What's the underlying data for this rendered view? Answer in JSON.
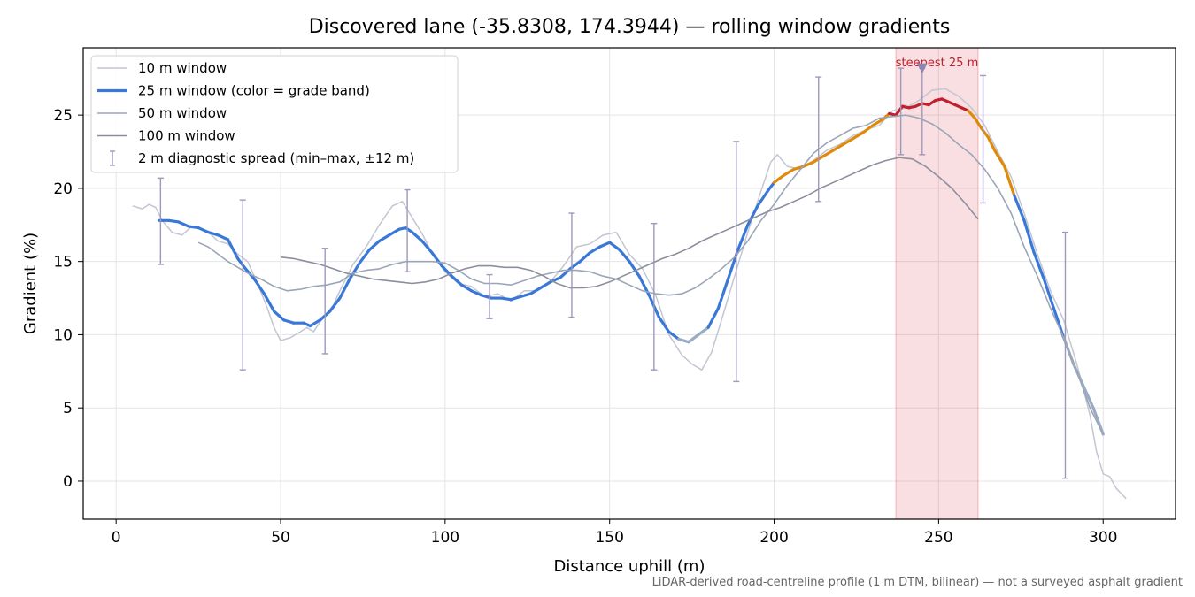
{
  "chart_data": {
    "type": "line",
    "title": "Discovered lane (-35.8308, 174.3944) — rolling window gradients",
    "xlabel": "Distance uphill (m)",
    "ylabel": "Gradient (%)",
    "xlim": [
      -10,
      322
    ],
    "ylim": [
      -2.6,
      29.6
    ],
    "x_ticks": [
      0,
      50,
      100,
      150,
      200,
      250,
      300
    ],
    "y_ticks": [
      0,
      5,
      10,
      15,
      20,
      25
    ],
    "grid": true,
    "legend_position": "top-left",
    "footnote": "LiDAR-derived road-centreline profile (1 m DTM, bilinear) — not a surveyed asphalt gradient",
    "highlight": {
      "label": "steepest 25 m",
      "x_range": [
        237,
        262
      ],
      "peak_x": 245,
      "peak_y": 28.2,
      "color": "#d9414b"
    },
    "series": [
      {
        "name": "10 m window",
        "color": "#c2c6d2",
        "x": [
          5,
          8,
          10,
          12,
          14,
          17,
          20,
          23,
          26,
          28,
          31,
          34,
          37,
          40,
          43,
          46,
          48,
          50,
          53,
          56,
          58,
          60,
          63,
          66,
          68,
          72,
          76,
          80,
          84,
          87,
          90,
          93,
          96,
          100,
          104,
          108,
          112,
          116,
          120,
          124,
          128,
          132,
          136,
          140,
          144,
          148,
          152,
          156,
          160,
          164,
          168,
          172,
          175,
          178,
          181,
          184,
          188,
          192,
          196,
          199,
          201,
          204,
          208,
          212,
          216,
          220,
          224,
          228,
          232,
          236,
          240,
          244,
          248,
          252,
          256,
          260,
          264,
          268,
          272,
          276,
          280,
          284,
          288,
          292,
          296,
          298,
          300,
          302,
          304,
          307
        ],
        "y": [
          18.8,
          18.6,
          18.9,
          18.7,
          17.8,
          17.0,
          16.8,
          17.4,
          17.2,
          17.0,
          16.4,
          16.2,
          15.5,
          15.0,
          13.5,
          11.8,
          10.5,
          9.6,
          9.8,
          10.2,
          10.5,
          10.2,
          11.2,
          12.0,
          13.0,
          14.8,
          16.0,
          17.5,
          18.8,
          19.1,
          18.0,
          16.9,
          15.6,
          14.3,
          13.5,
          13.3,
          12.6,
          12.8,
          12.3,
          13.0,
          13.0,
          13.6,
          14.7,
          16.0,
          16.2,
          16.8,
          17.0,
          15.5,
          14.5,
          12.7,
          10.0,
          8.6,
          8.0,
          7.6,
          8.8,
          11.0,
          14.0,
          17.0,
          19.8,
          21.8,
          22.3,
          21.5,
          21.3,
          21.9,
          22.6,
          23.0,
          23.6,
          24.0,
          24.3,
          25.3,
          25.5,
          26.0,
          26.7,
          26.8,
          26.3,
          25.5,
          24.3,
          22.5,
          20.8,
          18.3,
          15.5,
          13.0,
          11.0,
          8.0,
          4.5,
          2.0,
          0.5,
          0.3,
          -0.5,
          -1.2
        ]
      },
      {
        "name": "25 m window (color = grade band)",
        "color": "#3a78d8",
        "band_colors": {
          "low": "#3a78d8",
          "medium": "#e08a0b",
          "high": "#c0202e",
          "fade": "#9aacc4"
        },
        "x": [
          13,
          16,
          19,
          22,
          25,
          28,
          31,
          34,
          37,
          39,
          42,
          45,
          48,
          51,
          54,
          57,
          59,
          62,
          65,
          68,
          71,
          74,
          77,
          80,
          83,
          86,
          88,
          90,
          93,
          96,
          99,
          102,
          105,
          108,
          111,
          114,
          117,
          120,
          123,
          126,
          129,
          132,
          135,
          138,
          141,
          144,
          147,
          150,
          153,
          156,
          159,
          162,
          165,
          168,
          171,
          174,
          177,
          180,
          183,
          186,
          189,
          192,
          195,
          198,
          200,
          203,
          206,
          209,
          212,
          215,
          218,
          221,
          224,
          227,
          230,
          233,
          235,
          237,
          239,
          241,
          243,
          245,
          247,
          249,
          251,
          253,
          255,
          257,
          259,
          261,
          263,
          265,
          267,
          270,
          273,
          276,
          279,
          282,
          285,
          288,
          291,
          294,
          297,
          300
        ],
        "y": [
          17.8,
          17.8,
          17.7,
          17.4,
          17.3,
          17.0,
          16.8,
          16.5,
          15.2,
          14.6,
          13.8,
          12.8,
          11.6,
          11.0,
          10.8,
          10.8,
          10.6,
          11.0,
          11.6,
          12.5,
          13.8,
          14.9,
          15.8,
          16.4,
          16.8,
          17.2,
          17.3,
          17.0,
          16.4,
          15.6,
          14.7,
          14.0,
          13.4,
          13.0,
          12.7,
          12.5,
          12.5,
          12.4,
          12.6,
          12.8,
          13.2,
          13.6,
          13.9,
          14.5,
          15.0,
          15.6,
          16.0,
          16.3,
          15.8,
          15.0,
          14.0,
          12.7,
          11.2,
          10.2,
          9.7,
          9.5,
          10.0,
          10.5,
          11.8,
          13.8,
          15.8,
          17.5,
          18.8,
          19.8,
          20.4,
          20.9,
          21.3,
          21.5,
          21.8,
          22.2,
          22.6,
          23.0,
          23.4,
          23.8,
          24.3,
          24.7,
          25.1,
          25.0,
          25.6,
          25.5,
          25.6,
          25.8,
          25.7,
          26.0,
          26.1,
          25.9,
          25.7,
          25.5,
          25.3,
          24.8,
          24.1,
          23.5,
          22.6,
          21.5,
          19.5,
          17.8,
          15.6,
          13.8,
          11.8,
          9.8,
          8.0,
          6.5,
          5.0,
          3.2
        ],
        "bands": [
          "low",
          "low",
          "low",
          "low",
          "low",
          "low",
          "low",
          "low",
          "low",
          "low",
          "low",
          "low",
          "low",
          "low",
          "low",
          "low",
          "low",
          "low",
          "low",
          "low",
          "low",
          "low",
          "low",
          "low",
          "low",
          "low",
          "low",
          "low",
          "low",
          "low",
          "low",
          "low",
          "low",
          "low",
          "low",
          "low",
          "low",
          "low",
          "low",
          "low",
          "low",
          "low",
          "low",
          "low",
          "low",
          "low",
          "low",
          "low",
          "low",
          "low",
          "low",
          "low",
          "low",
          "low",
          "fade",
          "fade",
          "fade",
          "low",
          "low",
          "low",
          "low",
          "low",
          "low",
          "low",
          "medium",
          "medium",
          "medium",
          "medium",
          "medium",
          "medium",
          "medium",
          "medium",
          "medium",
          "medium",
          "medium",
          "medium",
          "high",
          "high",
          "high",
          "high",
          "high",
          "high",
          "high",
          "high",
          "high",
          "high",
          "high",
          "high",
          "medium",
          "medium",
          "medium",
          "medium",
          "medium",
          "medium",
          "low",
          "low",
          "low",
          "low",
          "low",
          "fade",
          "fade",
          "fade",
          "fade",
          "fade"
        ]
      },
      {
        "name": "50 m window",
        "color": "#9aa6b8",
        "x": [
          25,
          28,
          31,
          34,
          37,
          40,
          44,
          48,
          52,
          56,
          60,
          64,
          68,
          72,
          76,
          80,
          84,
          88,
          92,
          96,
          100,
          104,
          108,
          112,
          116,
          120,
          124,
          128,
          132,
          136,
          140,
          144,
          148,
          152,
          156,
          160,
          164,
          168,
          172,
          176,
          180,
          184,
          188,
          192,
          196,
          200,
          204,
          208,
          212,
          216,
          220,
          224,
          228,
          232,
          236,
          240,
          244,
          248,
          252,
          256,
          260,
          264,
          268,
          272,
          276,
          280,
          284,
          288,
          292,
          296,
          300
        ],
        "y": [
          16.3,
          16.0,
          15.5,
          15.0,
          14.6,
          14.2,
          13.8,
          13.3,
          13.0,
          13.1,
          13.3,
          13.4,
          13.6,
          14.2,
          14.4,
          14.5,
          14.8,
          15.0,
          15.0,
          15.0,
          14.9,
          14.4,
          13.8,
          13.5,
          13.5,
          13.4,
          13.7,
          14.0,
          14.2,
          14.4,
          14.4,
          14.3,
          14.0,
          13.8,
          13.4,
          13.0,
          12.8,
          12.7,
          12.8,
          13.2,
          13.8,
          14.5,
          15.3,
          16.4,
          17.8,
          18.9,
          20.2,
          21.3,
          22.4,
          23.1,
          23.6,
          24.1,
          24.3,
          24.8,
          24.9,
          25.0,
          24.8,
          24.4,
          23.8,
          23.0,
          22.3,
          21.3,
          20.0,
          18.3,
          16.0,
          14.0,
          11.8,
          9.8,
          7.5,
          5.0,
          3.2
        ]
      },
      {
        "name": "100 m window",
        "color": "#8a8f9e",
        "x": [
          50,
          54,
          58,
          62,
          66,
          70,
          74,
          78,
          82,
          86,
          90,
          94,
          98,
          102,
          106,
          110,
          114,
          118,
          122,
          126,
          130,
          134,
          138,
          142,
          146,
          150,
          154,
          158,
          162,
          166,
          170,
          174,
          178,
          182,
          186,
          190,
          194,
          198,
          202,
          206,
          210,
          214,
          218,
          222,
          226,
          230,
          234,
          238,
          242,
          246,
          250,
          254,
          258,
          262
        ],
        "y": [
          15.3,
          15.2,
          15.0,
          14.8,
          14.5,
          14.2,
          14.0,
          13.8,
          13.7,
          13.6,
          13.5,
          13.6,
          13.8,
          14.2,
          14.5,
          14.7,
          14.7,
          14.6,
          14.6,
          14.4,
          14.0,
          13.5,
          13.2,
          13.2,
          13.3,
          13.6,
          14.0,
          14.4,
          14.8,
          15.2,
          15.5,
          15.9,
          16.4,
          16.8,
          17.2,
          17.6,
          18.0,
          18.4,
          18.7,
          19.1,
          19.5,
          20.0,
          20.4,
          20.8,
          21.2,
          21.6,
          21.9,
          22.1,
          22.0,
          21.5,
          20.8,
          20.0,
          19.0,
          17.9
        ]
      }
    ],
    "error_bars": {
      "name": "2 m diagnostic spread (min–max, ±12 m)",
      "color": "#9f98bd",
      "points": [
        {
          "x": 13.5,
          "min": 14.8,
          "max": 20.7
        },
        {
          "x": 38.5,
          "min": 7.6,
          "max": 19.2
        },
        {
          "x": 63.5,
          "min": 8.7,
          "max": 15.9
        },
        {
          "x": 88.5,
          "min": 14.3,
          "max": 19.9
        },
        {
          "x": 113.5,
          "min": 11.1,
          "max": 14.1
        },
        {
          "x": 138.5,
          "min": 11.2,
          "max": 18.3
        },
        {
          "x": 163.5,
          "min": 7.6,
          "max": 17.6
        },
        {
          "x": 188.5,
          "min": 6.8,
          "max": 23.2
        },
        {
          "x": 213.5,
          "min": 19.1,
          "max": 27.6
        },
        {
          "x": 238.5,
          "min": 22.3,
          "max": 28.2
        },
        {
          "x": 245,
          "min": 22.3,
          "max": 28.2
        },
        {
          "x": 263.5,
          "min": 19.0,
          "max": 27.7
        },
        {
          "x": 288.5,
          "min": 0.2,
          "max": 17.0
        }
      ]
    }
  }
}
